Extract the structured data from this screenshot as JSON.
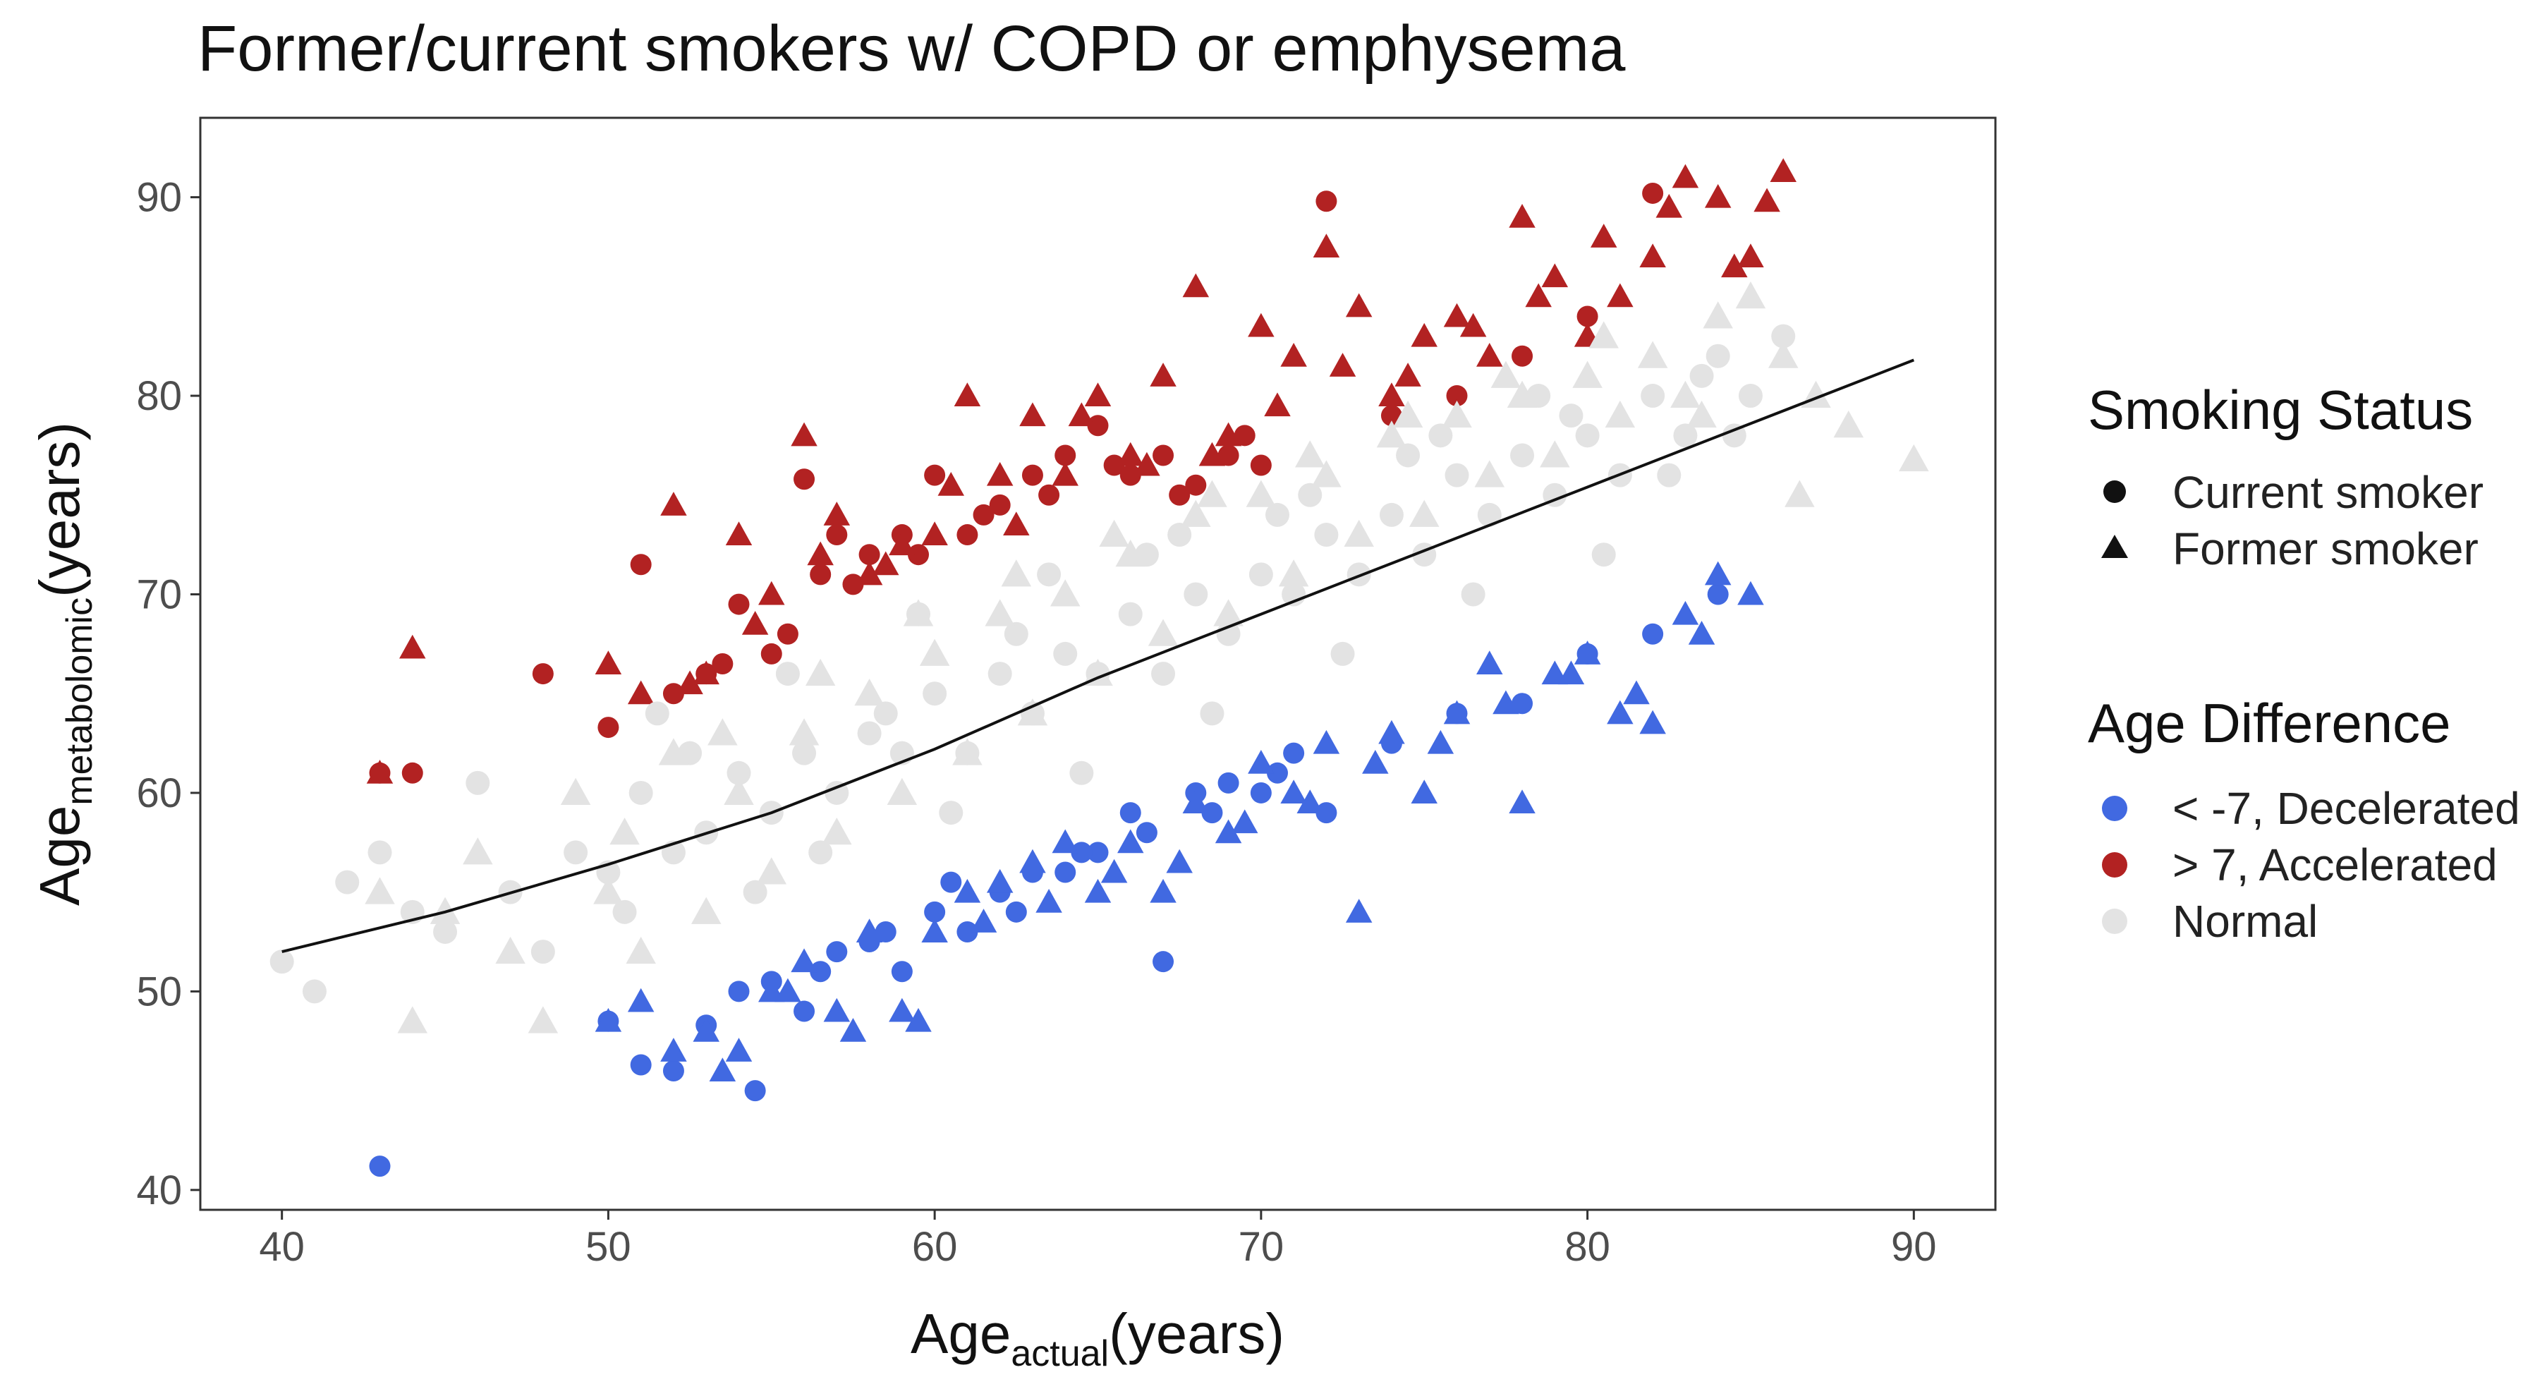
{
  "chart_data": {
    "type": "scatter",
    "title": "Former/current smokers w/ COPD or emphysema",
    "xlabel": {
      "base": "Age",
      "sub": "actual",
      "suffix": "(years)"
    },
    "ylabel": {
      "base": "Age",
      "sub": "metabolomic",
      "suffix": "(years)"
    },
    "xlim": [
      37.5,
      92.5
    ],
    "ylim": [
      39,
      94
    ],
    "x_ticks": [
      40,
      50,
      60,
      70,
      80,
      90
    ],
    "y_ticks": [
      40,
      50,
      60,
      70,
      80,
      90
    ],
    "grid": false,
    "legend_position": "right",
    "legend": {
      "shape_title": "Smoking Status",
      "shapes": [
        {
          "label": "Current smoker",
          "shape": "circle"
        },
        {
          "label": "Former smoker",
          "shape": "triangle"
        }
      ],
      "color_title": "Age Difference",
      "colors": [
        {
          "label": "< -7, Decelerated",
          "color": "#4169e1"
        },
        {
          "label": "> 7, Accelerated",
          "color": "#b22222"
        },
        {
          "label": "Normal",
          "color": "#e3e3e3"
        }
      ]
    },
    "trend_line": {
      "x": [
        40,
        45,
        50,
        55,
        60,
        65,
        70,
        75,
        80,
        85,
        90
      ],
      "y": [
        52.0,
        54.0,
        56.4,
        59.0,
        62.2,
        65.8,
        69.0,
        72.2,
        75.4,
        78.6,
        81.8
      ]
    },
    "series": [
      {
        "name": "Current smoker, > 7, Accelerated",
        "shape": "circle",
        "color": "#b22222",
        "x": [
          43,
          44,
          48,
          50,
          51,
          52,
          53,
          54,
          55,
          56,
          56.5,
          57,
          58,
          59,
          60,
          61,
          62,
          63,
          64,
          65,
          66,
          67,
          68,
          69,
          70,
          72,
          74,
          76,
          78,
          80,
          82,
          53.5,
          55.5,
          57.5,
          59.5,
          61.5,
          63.5,
          65.5,
          67.5,
          69.5
        ],
        "y": [
          61,
          61,
          66,
          63.3,
          71.5,
          65,
          66,
          69.5,
          67,
          75.8,
          71,
          73,
          72,
          73,
          76,
          73,
          74.5,
          76,
          77,
          78.5,
          76,
          77,
          75.5,
          77,
          76.5,
          89.8,
          79,
          80,
          82,
          84,
          90.2,
          66.5,
          68,
          70.5,
          72,
          74,
          75,
          76.5,
          75,
          78
        ]
      },
      {
        "name": "Former smoker, > 7, Accelerated",
        "shape": "triangle",
        "color": "#b22222",
        "x": [
          43,
          44,
          50,
          51,
          52,
          53,
          54,
          55,
          56,
          57,
          58,
          59,
          60,
          61,
          62,
          63,
          64,
          65,
          66,
          67,
          68,
          69,
          70,
          71,
          72,
          73,
          74,
          75,
          76,
          77,
          78,
          79,
          80,
          81,
          82,
          83,
          84,
          85,
          86,
          52.5,
          54.5,
          56.5,
          58.5,
          60.5,
          62.5,
          64.5,
          66.5,
          68.5,
          70.5,
          72.5,
          74.5,
          76.5,
          78.5,
          80.5,
          82.5,
          84.5,
          85.5
        ],
        "y": [
          61,
          67.3,
          66.5,
          65,
          74.5,
          66,
          73,
          70,
          78,
          74,
          71,
          72.5,
          73,
          80,
          76,
          79,
          76,
          80,
          77,
          81,
          85.5,
          78,
          83.5,
          82,
          87.5,
          84.5,
          80,
          83,
          84,
          82,
          89,
          86,
          83,
          85,
          87,
          91,
          90,
          87,
          91.3,
          65.5,
          68.5,
          72,
          71.5,
          75.5,
          73.5,
          79,
          76.5,
          77,
          79.5,
          81.5,
          81,
          83.5,
          85,
          88,
          89.5,
          86.5,
          89.8
        ]
      },
      {
        "name": "Current smoker, < -7, Decelerated",
        "shape": "circle",
        "color": "#4169e1",
        "x": [
          43,
          50,
          51,
          52,
          53,
          54,
          55,
          56,
          57,
          58,
          59,
          60,
          61,
          62,
          63,
          64,
          65,
          66,
          67,
          68,
          69,
          70,
          71,
          72,
          74,
          76,
          78,
          80,
          82,
          84,
          54.5,
          56.5,
          58.5,
          60.5,
          62.5,
          64.5,
          66.5,
          68.5,
          70.5
        ],
        "y": [
          41.2,
          48.5,
          46.3,
          46,
          48.3,
          50,
          50.5,
          49,
          52,
          52.5,
          51,
          54,
          53,
          55,
          56,
          56,
          57,
          59,
          51.5,
          60,
          60.5,
          60,
          62,
          59,
          62.5,
          64,
          64.5,
          67,
          68,
          70,
          45,
          51,
          53,
          55.5,
          54,
          57,
          58,
          59,
          61
        ]
      },
      {
        "name": "Former smoker, < -7, Decelerated",
        "shape": "triangle",
        "color": "#4169e1",
        "x": [
          50,
          51,
          52,
          53,
          54,
          55,
          56,
          57,
          58,
          59,
          60,
          61,
          62,
          63,
          64,
          65,
          66,
          67,
          68,
          69,
          70,
          71,
          72,
          73,
          74,
          75,
          76,
          77,
          78,
          79,
          80,
          81,
          82,
          83,
          84,
          85,
          53.5,
          55.5,
          57.5,
          59.5,
          61.5,
          63.5,
          65.5,
          67.5,
          69.5,
          71.5,
          73.5,
          75.5,
          77.5,
          79.5,
          81.5,
          83.5
        ],
        "y": [
          48.5,
          49.5,
          47,
          48,
          47,
          50,
          51.5,
          49,
          53,
          49,
          53,
          55,
          55.5,
          56.5,
          57.5,
          55,
          57.5,
          55,
          59.5,
          58,
          61.5,
          60,
          62.5,
          54,
          63,
          60,
          64,
          66.5,
          59.5,
          66,
          67,
          64,
          63.5,
          69,
          71,
          70,
          46,
          50,
          48,
          48.5,
          53.5,
          54.5,
          56,
          56.5,
          58.5,
          59.5,
          61.5,
          62.5,
          64.5,
          66,
          65,
          68
        ]
      },
      {
        "name": "Current smoker, Normal",
        "shape": "circle",
        "color": "#e3e3e3",
        "x": [
          40,
          41,
          42,
          43,
          44,
          45,
          46,
          47,
          48,
          49,
          50,
          51,
          52,
          53,
          54,
          55,
          56,
          57,
          58,
          59,
          60,
          61,
          62,
          63,
          64,
          65,
          66,
          67,
          68,
          69,
          70,
          71,
          72,
          73,
          74,
          75,
          76,
          77,
          78,
          79,
          80,
          81,
          82,
          83,
          84,
          85,
          86,
          50.5,
          52.5,
          54.5,
          56.5,
          58.5,
          60.5,
          62.5,
          64.5,
          66.5,
          68.5,
          70.5,
          72.5,
          74.5,
          76.5,
          78.5,
          80.5,
          82.5,
          84.5,
          51.5,
          55.5,
          59.5,
          63.5,
          67.5,
          71.5,
          75.5,
          79.5,
          83.5
        ],
        "y": [
          51.5,
          50,
          55.5,
          57,
          54,
          53,
          60.5,
          55,
          52,
          57,
          56,
          60,
          57,
          58,
          61,
          59,
          62,
          60,
          63,
          62,
          65,
          62,
          66,
          64,
          67,
          66,
          69,
          66,
          70,
          68,
          71,
          70,
          73,
          71,
          74,
          72,
          76,
          74,
          77,
          75,
          78,
          76,
          80,
          78,
          82,
          80,
          83,
          54,
          62,
          55,
          57,
          64,
          59,
          68,
          61,
          72,
          64,
          74,
          67,
          77,
          70,
          80,
          72,
          76,
          78,
          64,
          66,
          69,
          71,
          73,
          75,
          78,
          79,
          81
        ]
      },
      {
        "name": "Former smoker, Normal",
        "shape": "triangle",
        "color": "#e3e3e3",
        "x": [
          43,
          44,
          45,
          46,
          47,
          48,
          49,
          50,
          51,
          52,
          53,
          54,
          55,
          56,
          57,
          58,
          59,
          60,
          61,
          62,
          63,
          64,
          65,
          66,
          67,
          68,
          69,
          70,
          71,
          72,
          73,
          74,
          75,
          76,
          77,
          78,
          79,
          80,
          81,
          82,
          83,
          84,
          85,
          86,
          87,
          88,
          90,
          50.5,
          53.5,
          56.5,
          59.5,
          62.5,
          65.5,
          68.5,
          71.5,
          74.5,
          77.5,
          80.5,
          83.5,
          86.5
        ],
        "y": [
          55,
          48.5,
          54,
          57,
          52,
          48.5,
          60,
          55,
          52,
          62,
          54,
          60,
          56,
          63,
          58,
          65,
          60,
          67,
          62,
          69,
          64,
          70,
          66,
          72,
          68,
          74,
          69,
          75,
          71,
          76,
          73,
          78,
          74,
          79,
          76,
          80,
          77,
          81,
          79,
          82,
          80,
          84,
          85,
          82,
          80,
          78.5,
          76.8,
          58,
          63,
          66,
          69,
          71,
          73,
          75,
          77,
          79,
          81,
          83,
          79,
          75
        ]
      }
    ]
  }
}
